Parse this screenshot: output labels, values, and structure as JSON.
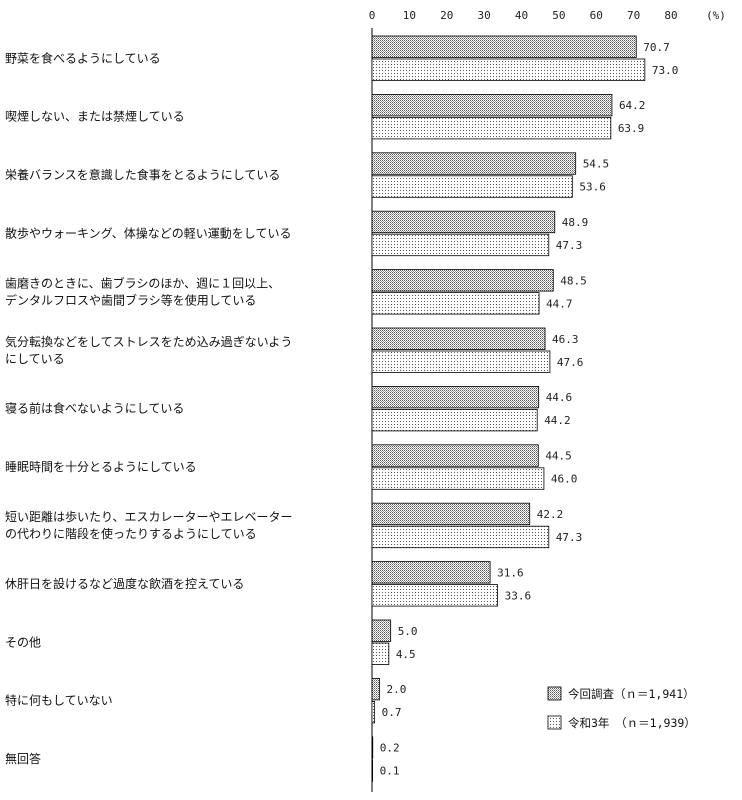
{
  "chart_data": {
    "type": "bar",
    "orientation": "horizontal",
    "unit": "(%)",
    "xlim": [
      0,
      80
    ],
    "ticks": [
      "0",
      "10",
      "20",
      "30",
      "40",
      "50",
      "60",
      "70",
      "80"
    ],
    "categories": [
      [
        "野菜を食べるようにしている"
      ],
      [
        "喫煙しない、または禁煙している"
      ],
      [
        "栄養バランスを意識した食事をとるようにしている"
      ],
      [
        "散歩やウォーキング、体操などの軽い運動をしている"
      ],
      [
        "歯磨きのときに、歯ブラシのほか、週に１回以上、",
        "デンタルフロスや歯間ブラシ等を使用している"
      ],
      [
        "気分転換などをしてストレスをため込み過ぎないよう",
        "にしている"
      ],
      [
        "寝る前は食べないようにしている"
      ],
      [
        "睡眠時間を十分とるようにしている"
      ],
      [
        "短い距離は歩いたり、エスカレーターやエレベーター",
        "の代わりに階段を使ったりするようにしている"
      ],
      [
        "休肝日を設けるなど過度な飲酒を控えている"
      ],
      [
        "その他"
      ],
      [
        "特に何もしていない"
      ],
      [
        "無回答"
      ]
    ],
    "series": [
      {
        "name": "今回調査（ｎ＝1,941）",
        "pattern": "dense-grid",
        "values": [
          70.7,
          64.2,
          54.5,
          48.9,
          48.5,
          46.3,
          44.6,
          44.5,
          42.2,
          31.6,
          5.0,
          2.0,
          0.2
        ],
        "labels": [
          "70.7",
          "64.2",
          "54.5",
          "48.9",
          "48.5",
          "46.3",
          "44.6",
          "44.5",
          "42.2",
          "31.6",
          "5.0",
          "2.0",
          "0.2"
        ]
      },
      {
        "name": "令和3年　（ｎ＝1,939）",
        "pattern": "dots",
        "values": [
          73.0,
          63.9,
          53.6,
          47.3,
          44.7,
          47.6,
          44.2,
          46.0,
          47.3,
          33.6,
          4.5,
          0.7,
          0.1
        ],
        "labels": [
          "73.0",
          "63.9",
          "53.6",
          "47.3",
          "44.7",
          "47.6",
          "44.2",
          "46.0",
          "47.3",
          "33.6",
          "4.5",
          "0.7",
          "0.1"
        ]
      }
    ],
    "legend_position": "bottom-right",
    "grid": false
  }
}
